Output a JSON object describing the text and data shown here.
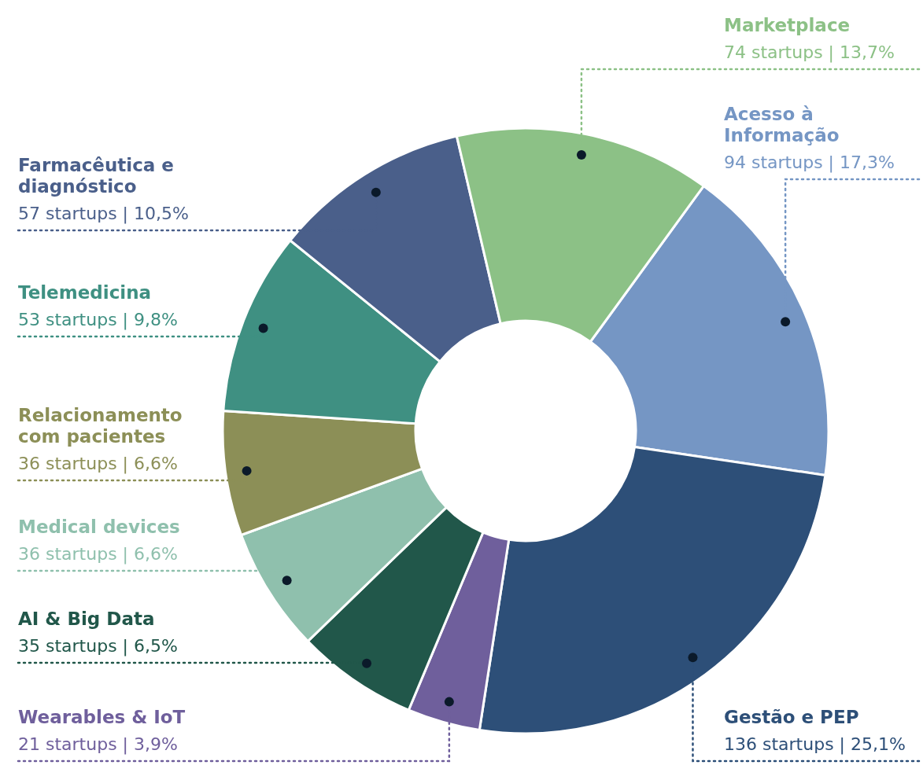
{
  "chart_data": {
    "type": "donut",
    "categories": [
      "Acesso à Informação",
      "Gestão e PEP",
      "Wearables & IoT",
      "AI & Big Data",
      "Medical devices",
      "Relacionamento com pacientes",
      "Telemedicina",
      "Farmacêutica e diagnóstico",
      "Marketplace"
    ],
    "values": [
      94,
      136,
      21,
      35,
      36,
      36,
      53,
      57,
      74
    ],
    "value_labels": [
      "94 startups | 17,3%",
      "136 startups | 25,1%",
      "21 startups | 3,9%",
      "35 startups | 6,5%",
      "36 startups | 6,6%",
      "36 startups | 6,6%",
      "53 startups | 9,8%",
      "57 startups | 10,5%",
      "74 startups | 13,7%"
    ],
    "colors": [
      "#7596c4",
      "#2d4f78",
      "#6f5f9c",
      "#21574a",
      "#8fc0ad",
      "#8c8f57",
      "#3f9082",
      "#4a5f8a",
      "#8cc186"
    ]
  }
}
